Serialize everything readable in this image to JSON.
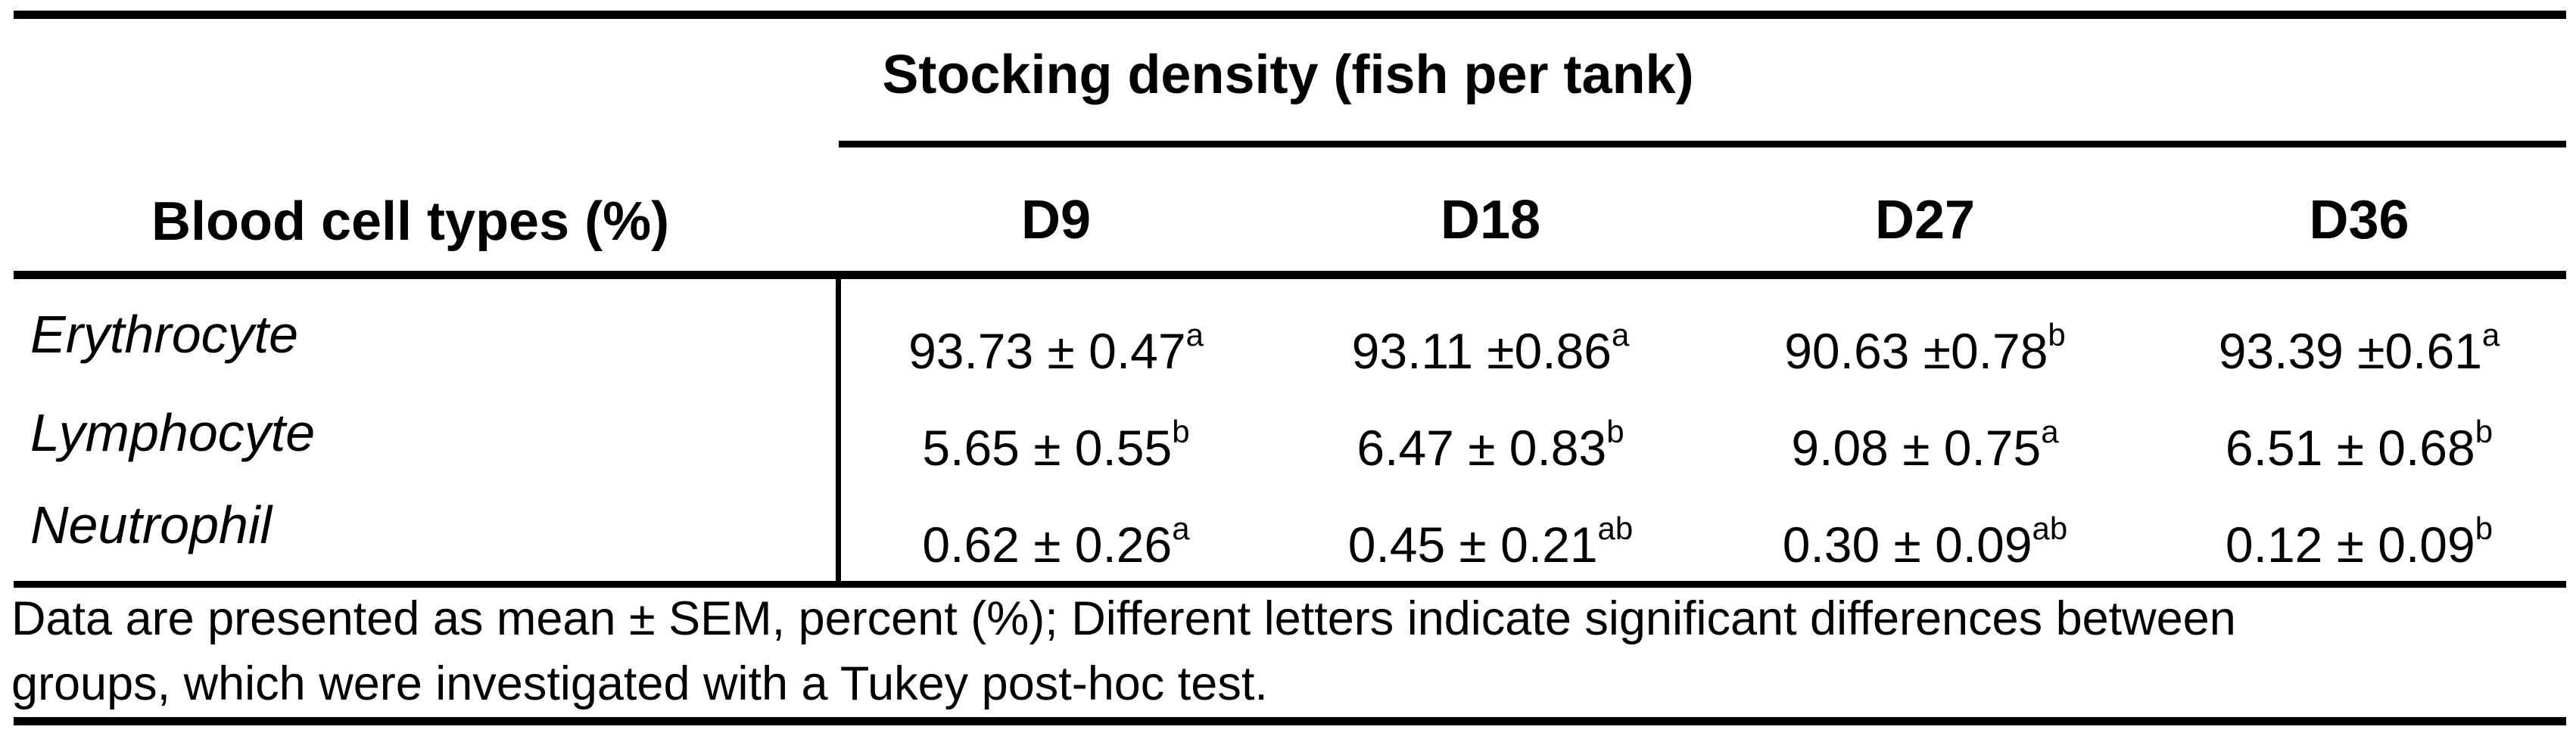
{
  "table": {
    "title": "Stocking density (fish per tank)",
    "row_header": "Blood cell types (%)",
    "columns": [
      "D9",
      "D18",
      "D27",
      "D36"
    ],
    "rows": [
      {
        "label": "Erythrocyte",
        "cells": [
          {
            "value": "93.73 ± 0.47",
            "sup": "a"
          },
          {
            "value": "93.11 ±0.86",
            "sup": "a"
          },
          {
            "value": "90.63 ±0.78",
            "sup": "b"
          },
          {
            "value": "93.39 ±0.61",
            "sup": "a"
          }
        ]
      },
      {
        "label": "Lymphocyte",
        "cells": [
          {
            "value": "5.65 ± 0.55",
            "sup": "b"
          },
          {
            "value": "6.47 ± 0.83",
            "sup": "b"
          },
          {
            "value": "9.08 ± 0.75",
            "sup": "a"
          },
          {
            "value": "6.51 ± 0.68",
            "sup": "b"
          }
        ]
      },
      {
        "label": "Neutrophil",
        "cells": [
          {
            "value": "0.62 ± 0.26",
            "sup": "a"
          },
          {
            "value": "0.45 ± 0.21",
            "sup": "ab"
          },
          {
            "value": "0.30 ± 0.09",
            "sup": "ab"
          },
          {
            "value": "0.12 ± 0.09",
            "sup": "b"
          }
        ]
      }
    ],
    "footnote_line1": "Data are presented as mean ± SEM, percent (%); Different letters indicate significant differences between",
    "footnote_line2": "groups, which were investigated with a Tukey post-hoc test.",
    "colors": {
      "text": "#000000",
      "background": "#ffffff",
      "rule": "#000000"
    }
  }
}
